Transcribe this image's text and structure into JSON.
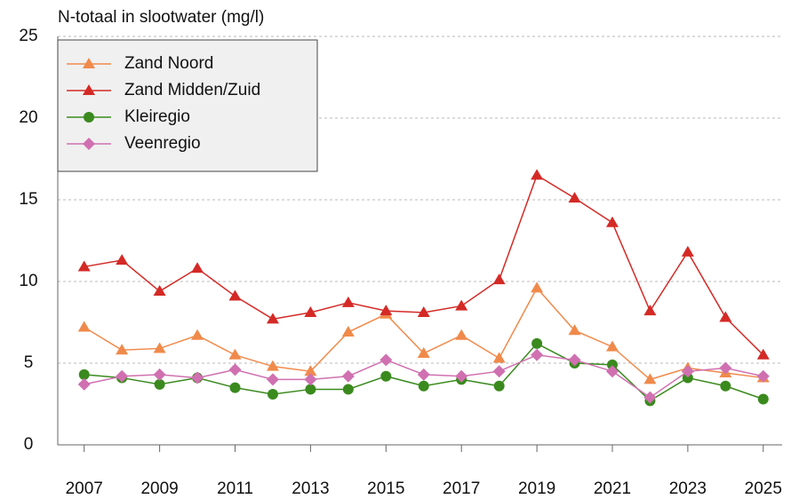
{
  "chart_data": {
    "type": "line",
    "title": "N-totaal in slootwater (mg/l)",
    "x": [
      2007,
      2008,
      2009,
      2010,
      2011,
      2012,
      2013,
      2014,
      2015,
      2016,
      2017,
      2018,
      2019,
      2020,
      2021,
      2022,
      2023,
      2024,
      2025
    ],
    "series": [
      {
        "name": "Zand Noord",
        "color": "#f08a4b",
        "marker": "triangle",
        "values": [
          7.2,
          5.8,
          5.9,
          6.7,
          5.5,
          4.8,
          4.5,
          6.9,
          8.0,
          5.6,
          6.7,
          5.3,
          9.6,
          7.0,
          6.0,
          4.0,
          4.7,
          4.4,
          4.1
        ]
      },
      {
        "name": "Zand Midden/Zuid",
        "color": "#d42a26",
        "marker": "triangle",
        "values": [
          10.9,
          11.3,
          9.4,
          10.8,
          9.1,
          7.7,
          8.1,
          8.7,
          8.2,
          8.1,
          8.5,
          10.1,
          16.5,
          15.1,
          13.6,
          8.2,
          11.8,
          7.8,
          5.5
        ]
      },
      {
        "name": "Kleiregio",
        "color": "#3a8a1e",
        "marker": "circle",
        "values": [
          4.3,
          4.1,
          3.7,
          4.1,
          3.5,
          3.1,
          3.4,
          3.4,
          4.2,
          3.6,
          4.0,
          3.6,
          6.2,
          5.0,
          4.9,
          2.7,
          4.1,
          3.6,
          2.8
        ]
      },
      {
        "name": "Veenregio",
        "color": "#d070b0",
        "marker": "diamond",
        "values": [
          3.7,
          4.2,
          4.3,
          4.1,
          4.6,
          4.0,
          4.0,
          4.2,
          5.2,
          4.3,
          4.2,
          4.5,
          5.5,
          5.2,
          4.5,
          2.9,
          4.5,
          4.7,
          4.2
        ]
      }
    ],
    "xlim": [
      2006.3,
      2025.5
    ],
    "xticks": [
      2007,
      2009,
      2011,
      2013,
      2015,
      2017,
      2019,
      2021,
      2023,
      2025
    ],
    "ylim": [
      0,
      25
    ],
    "yticks": [
      0,
      5,
      10,
      15,
      20,
      25
    ],
    "grid": true,
    "legend": "top-left"
  }
}
